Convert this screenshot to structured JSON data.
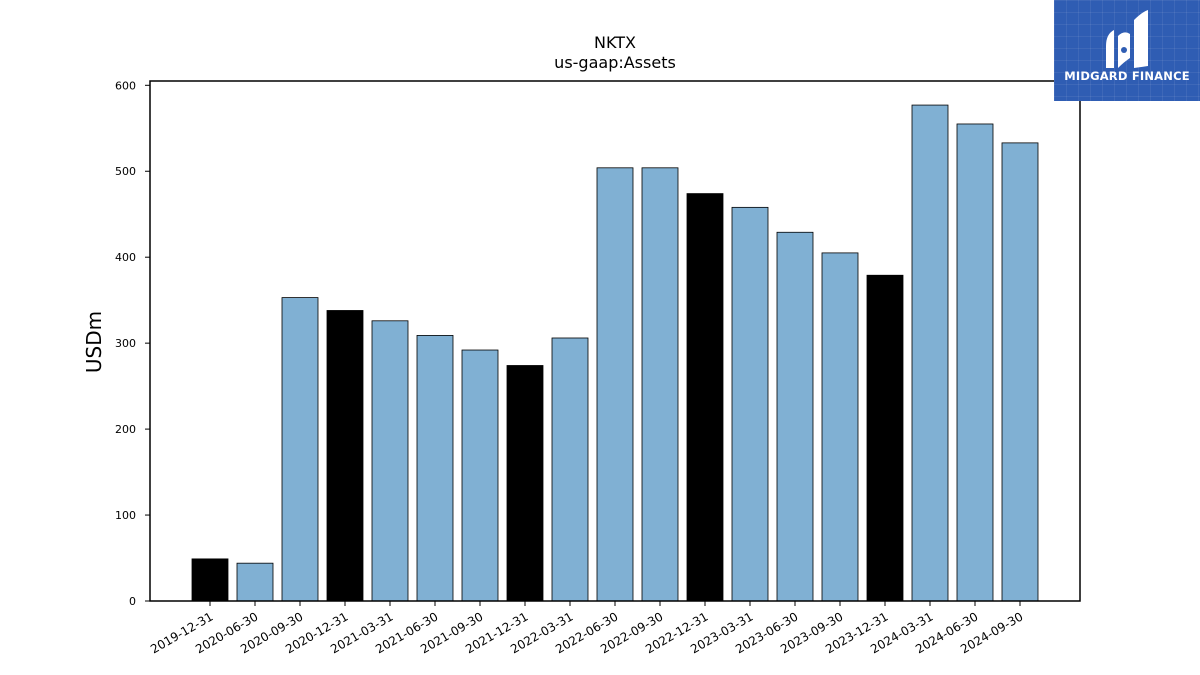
{
  "brand": {
    "name": "MIDGARD FINANCE"
  },
  "chart_data": {
    "type": "bar",
    "title": "NKTX",
    "subtitle": "us-gaap:Assets",
    "ylabel": "USDm",
    "xlabel": "",
    "ylim": [
      0,
      605
    ],
    "yticks": [
      0,
      100,
      200,
      300,
      400,
      500,
      600
    ],
    "grid": false,
    "categories": [
      "2019-12-31",
      "2020-06-30",
      "2020-09-30",
      "2020-12-31",
      "2021-03-31",
      "2021-06-30",
      "2021-09-30",
      "2021-12-31",
      "2022-03-31",
      "2022-06-30",
      "2022-09-30",
      "2022-12-31",
      "2023-03-31",
      "2023-06-30",
      "2023-09-30",
      "2023-12-31",
      "2024-03-31",
      "2024-06-30",
      "2024-09-30"
    ],
    "values": [
      49,
      44,
      353,
      338,
      326,
      309,
      292,
      274,
      306,
      504,
      504,
      474,
      458,
      429,
      405,
      379,
      577,
      555,
      533
    ],
    "bar_colors": [
      "#000000",
      "#80b0d3",
      "#80b0d3",
      "#000000",
      "#80b0d3",
      "#80b0d3",
      "#80b0d3",
      "#000000",
      "#80b0d3",
      "#80b0d3",
      "#80b0d3",
      "#000000",
      "#80b0d3",
      "#80b0d3",
      "#80b0d3",
      "#000000",
      "#80b0d3",
      "#80b0d3",
      "#80b0d3"
    ]
  }
}
